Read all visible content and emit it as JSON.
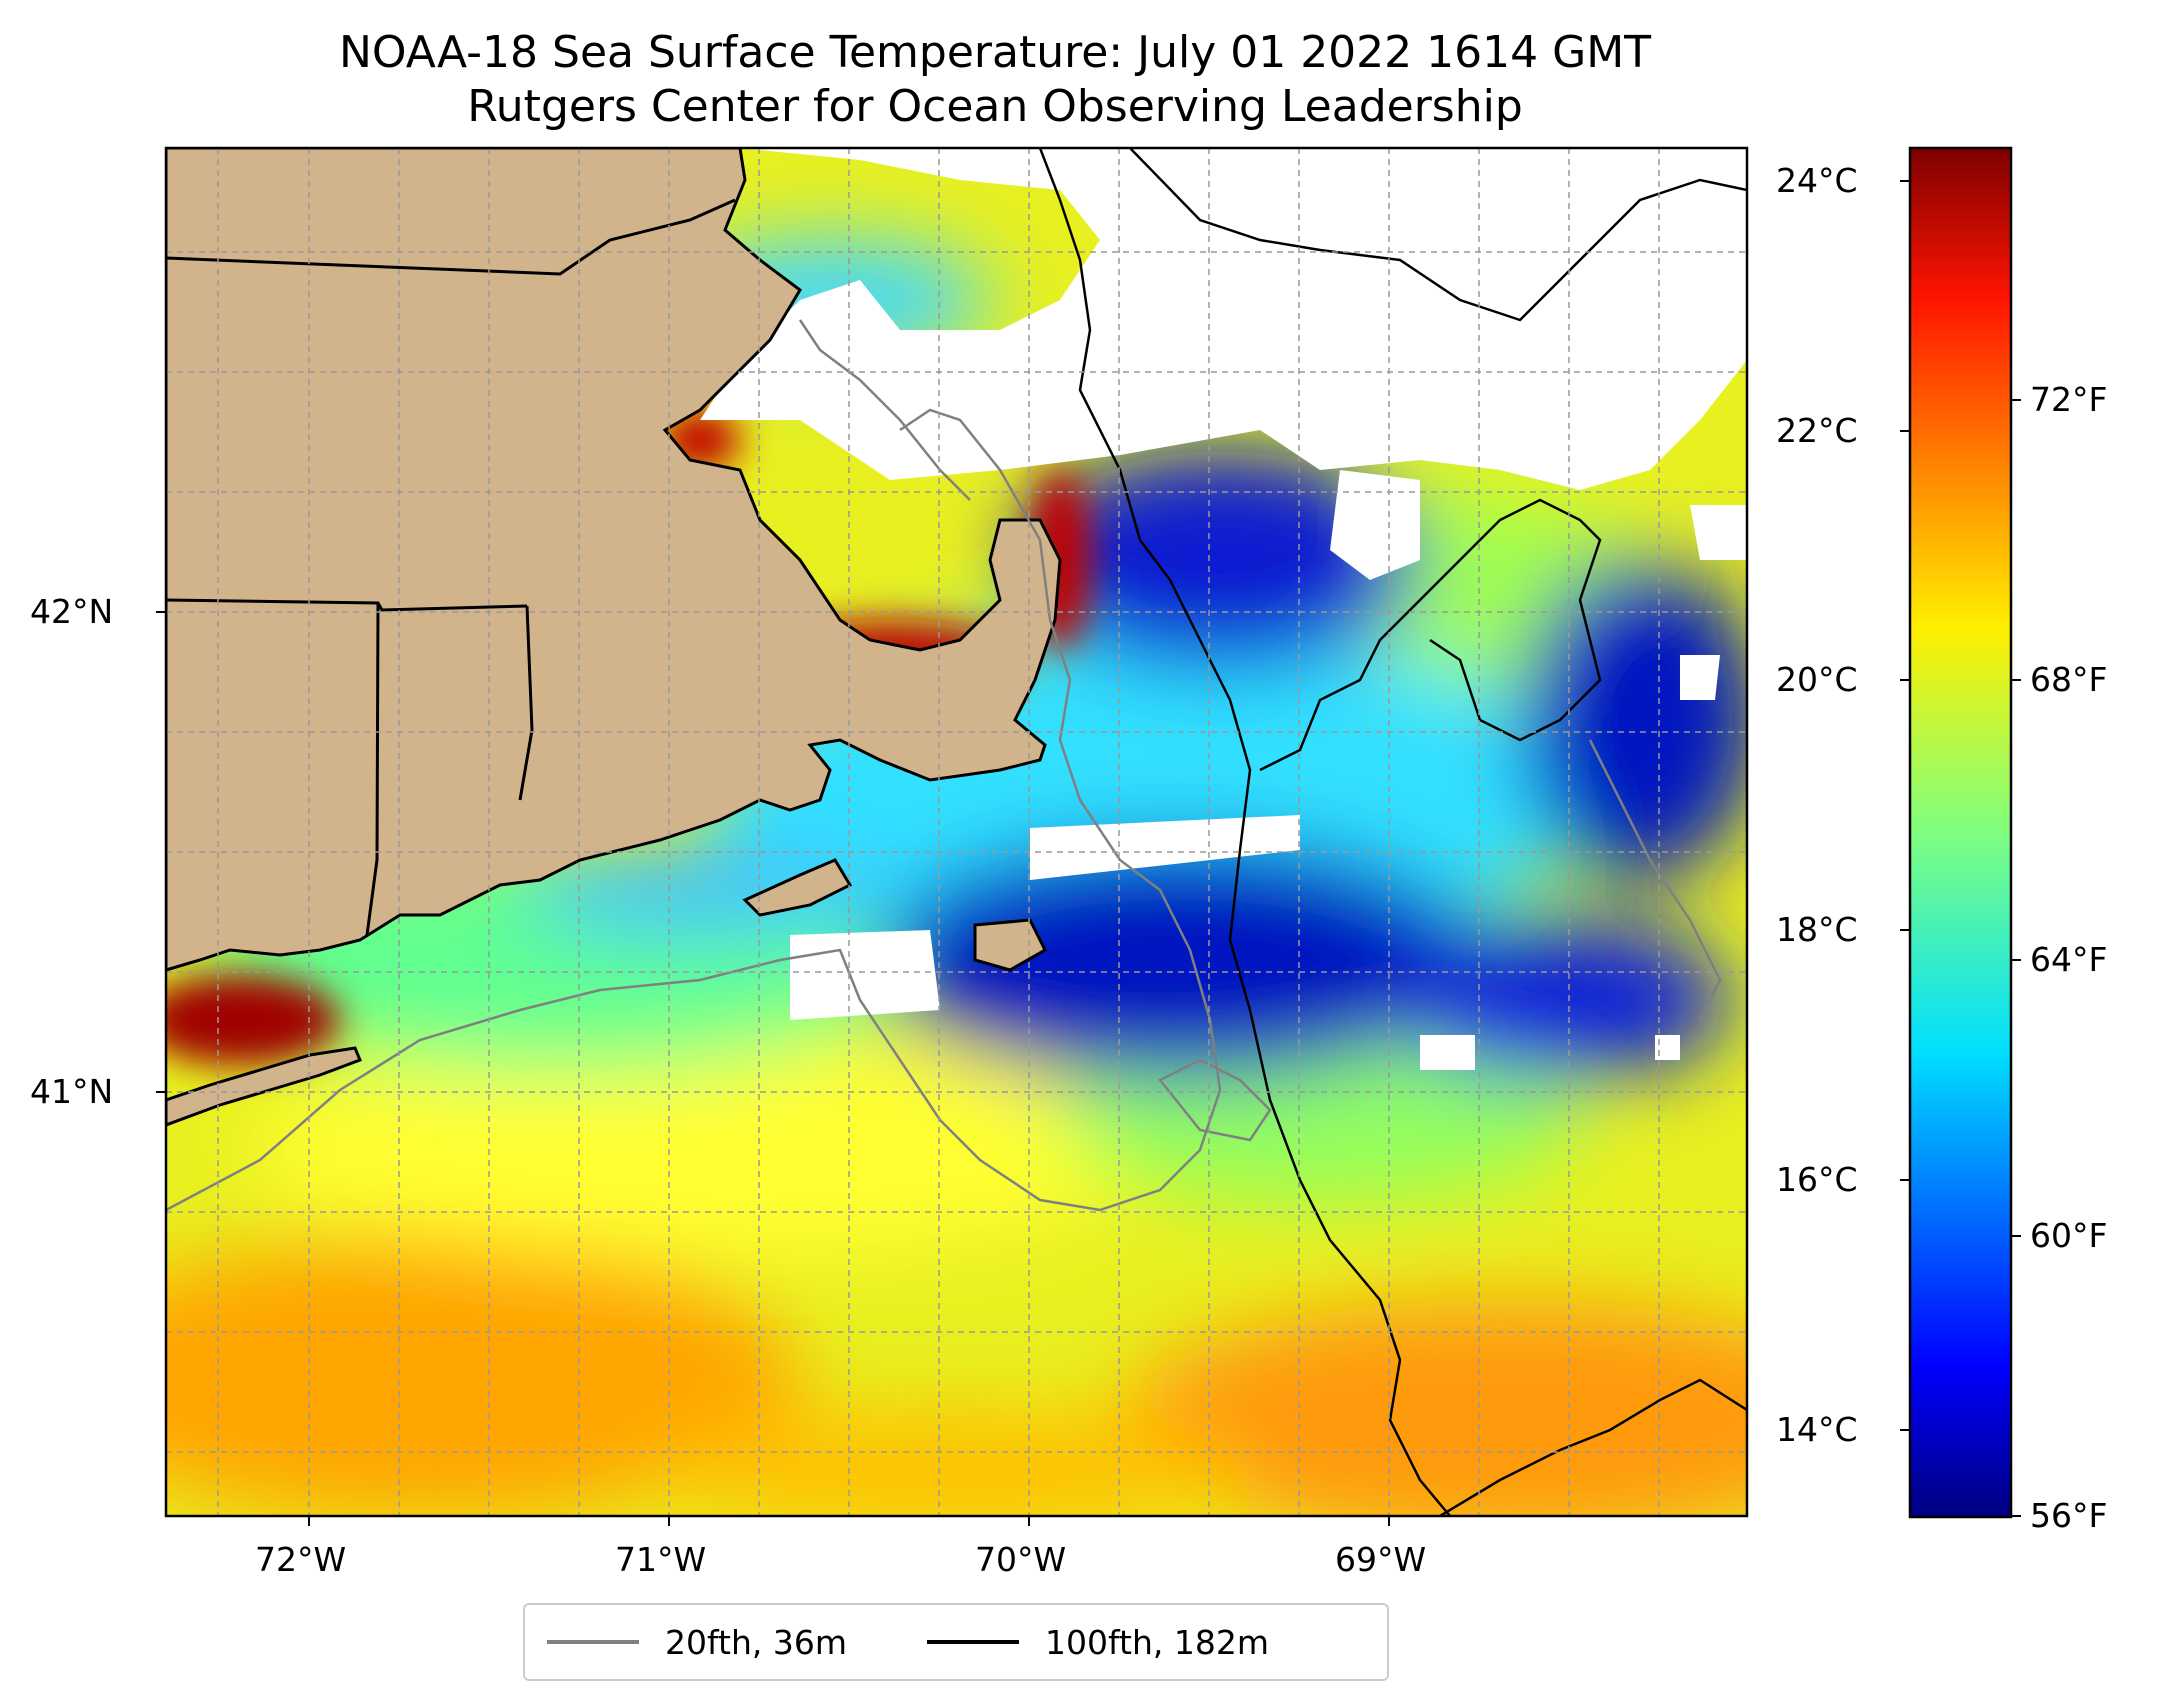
{
  "title": {
    "line1": "NOAA-18 Sea Surface Temperature: July 01 2022 1614 GMT",
    "line2": "Rutgers Center for Ocean Observing Leadership"
  },
  "map": {
    "x_ticks": [
      "72°W",
      "71°W",
      "70°W",
      "69°W"
    ],
    "y_ticks": [
      "42°N",
      "41°N"
    ],
    "gridlines": true,
    "land_color": "#d2b48c",
    "no_data_color": "#ffffff"
  },
  "colorbar": {
    "colormap": "jet",
    "celsius_ticks": [
      "24°C",
      "22°C",
      "20°C",
      "18°C",
      "16°C",
      "14°C"
    ],
    "fahrenheit_ticks": [
      "72°F",
      "68°F",
      "64°F",
      "60°F",
      "56°F"
    ]
  },
  "legend": {
    "items": [
      {
        "label": "20fth, 36m",
        "color": "#808080"
      },
      {
        "label": "100fth, 182m",
        "color": "#000000"
      }
    ]
  }
}
